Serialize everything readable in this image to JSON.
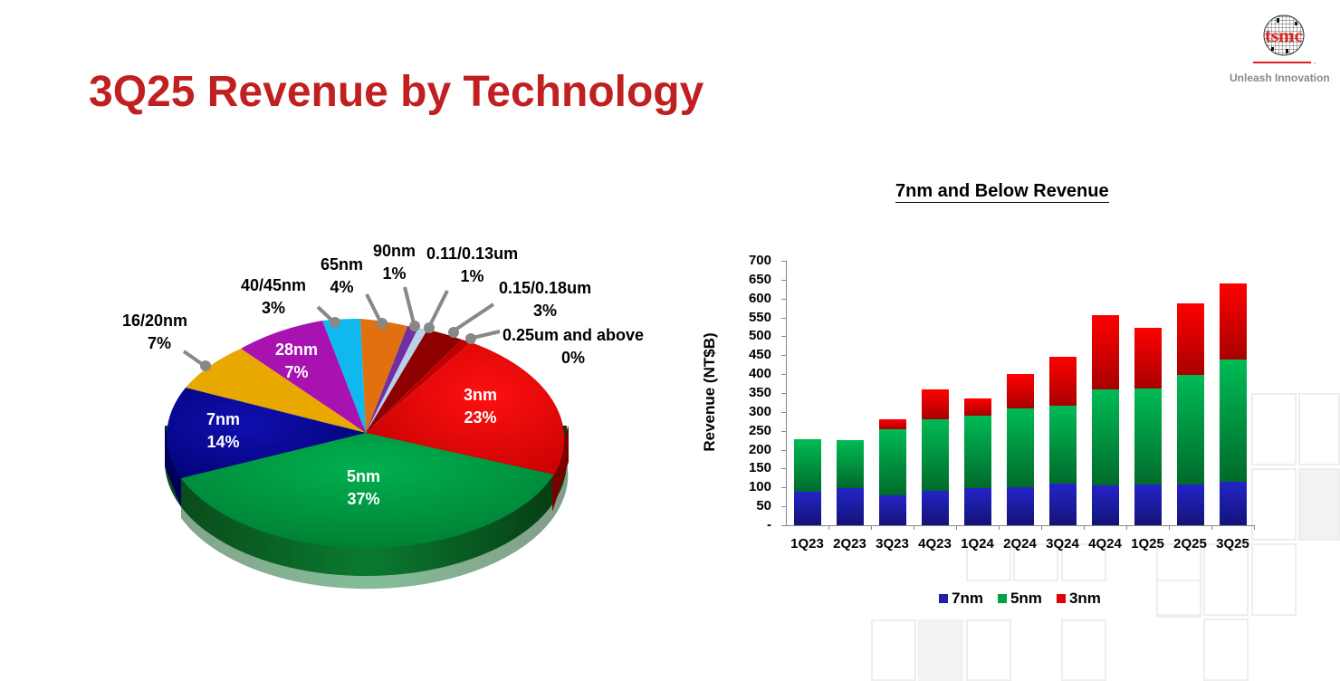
{
  "slide": {
    "title": "3Q25 Revenue by Technology",
    "logo_text": "tsmc",
    "tagline": "Unleash Innovation"
  },
  "colors": {
    "title": "#c0201f",
    "7nm": "#1f1fa8",
    "5nm": "#00a347",
    "3nm": "#e00000"
  },
  "chart_data": [
    {
      "type": "pie",
      "title": "3Q25 Revenue by Technology",
      "categories": [
        "3nm",
        "5nm",
        "7nm",
        "16/20nm",
        "28nm",
        "40/45nm",
        "65nm",
        "90nm",
        "0.11/0.13um",
        "0.15/0.18um",
        "0.25um and above"
      ],
      "values": [
        23,
        37,
        14,
        7,
        7,
        3,
        4,
        1,
        1,
        3,
        0
      ],
      "labels": [
        {
          "name": "3nm",
          "pct": "23%"
        },
        {
          "name": "5nm",
          "pct": "37%"
        },
        {
          "name": "7nm",
          "pct": "14%"
        },
        {
          "name": "16/20nm",
          "pct": "7%"
        },
        {
          "name": "28nm",
          "pct": "7%"
        },
        {
          "name": "40/45nm",
          "pct": "3%"
        },
        {
          "name": "65nm",
          "pct": "4%"
        },
        {
          "name": "90nm",
          "pct": "1%"
        },
        {
          "name": "0.11/0.13um",
          "pct": "1%"
        },
        {
          "name": "0.15/0.18um",
          "pct": "3%"
        },
        {
          "name": "0.25um and above",
          "pct": "0%"
        }
      ],
      "colors": [
        "#e80000",
        "#00a347",
        "#11119a",
        "#e8a800",
        "#a012a8",
        "#10b8f0",
        "#e07010",
        "#7030a0",
        "#b8d0e8",
        "#a00000",
        "#c00000"
      ],
      "style": "3d-tilted"
    },
    {
      "type": "bar",
      "stacked": true,
      "title": "7nm and Below Revenue",
      "xlabel": "",
      "ylabel": "Revenue (NT$B)",
      "ylim": [
        0,
        700
      ],
      "yticks": [
        "-",
        "50",
        "100",
        "150",
        "200",
        "250",
        "300",
        "350",
        "400",
        "450",
        "500",
        "550",
        "600",
        "650",
        "700"
      ],
      "categories": [
        "1Q23",
        "2Q23",
        "3Q23",
        "4Q23",
        "1Q24",
        "2Q24",
        "3Q24",
        "4Q24",
        "1Q25",
        "2Q25",
        "3Q25"
      ],
      "series": [
        {
          "name": "7nm",
          "values": [
            89,
            98,
            79,
            91,
            98,
            101,
            110,
            106,
            108,
            108,
            115
          ]
        },
        {
          "name": "5nm",
          "values": [
            139,
            128,
            174,
            190,
            192,
            208,
            206,
            254,
            254,
            290,
            324
          ]
        },
        {
          "name": "3nm",
          "values": [
            0,
            0,
            27,
            79,
            46,
            91,
            130,
            196,
            161,
            189,
            201
          ]
        }
      ],
      "totals": [
        228,
        226,
        280,
        360,
        336,
        400,
        446,
        556,
        523,
        587,
        640
      ],
      "legend": {
        "position": "bottom",
        "entries": [
          "7nm",
          "5nm",
          "3nm"
        ]
      },
      "grid": false
    }
  ]
}
